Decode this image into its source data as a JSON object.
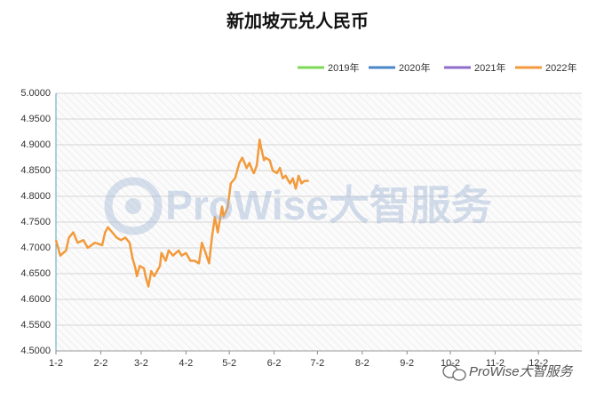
{
  "chart_data": {
    "type": "line",
    "title": "新加坡元兑人民币",
    "watermark": "ProWise大智服务",
    "footer": "ProWise大智服务",
    "x": [
      0,
      3,
      7,
      9,
      12,
      15,
      19,
      22,
      27,
      32,
      34,
      36,
      39,
      42,
      45,
      48,
      51,
      53,
      55,
      56,
      58,
      61,
      62,
      64,
      66,
      68,
      72,
      73,
      76,
      78,
      81,
      85,
      87,
      90,
      93,
      96,
      99,
      101,
      103,
      106,
      108,
      110,
      112,
      115,
      116,
      119,
      121,
      124,
      127,
      129,
      132,
      134,
      136,
      137,
      139,
      141,
      142,
      144,
      145,
      148,
      150,
      153,
      155,
      157,
      159,
      162,
      164,
      166,
      168,
      170,
      172,
      175
    ],
    "series": [
      {
        "name": "2019年",
        "color": "#7ed957",
        "values": [
          null,
          null,
          null,
          null,
          null,
          null,
          null,
          null,
          null,
          null,
          null,
          null,
          null,
          null,
          null,
          null,
          null,
          null,
          null,
          null,
          null,
          null,
          null,
          null,
          null,
          null,
          null,
          null,
          null,
          null,
          null,
          null,
          null,
          null,
          null,
          null,
          null,
          null,
          null,
          null,
          null,
          null,
          null,
          null,
          null,
          null,
          null,
          null,
          null,
          null,
          null,
          null,
          null,
          null,
          null,
          null,
          null,
          null,
          null,
          null,
          null,
          null,
          null,
          null,
          null,
          null,
          null,
          null,
          null,
          null,
          null,
          null
        ]
      },
      {
        "name": "2020年",
        "color": "#4a86c8",
        "values": [
          null,
          null,
          null,
          null,
          null,
          null,
          null,
          null,
          null,
          null,
          null,
          null,
          null,
          null,
          null,
          null,
          null,
          null,
          null,
          null,
          null,
          null,
          null,
          null,
          null,
          null,
          null,
          null,
          null,
          null,
          null,
          null,
          null,
          null,
          null,
          null,
          null,
          null,
          null,
          null,
          null,
          null,
          null,
          null,
          null,
          null,
          null,
          null,
          null,
          null,
          null,
          null,
          null,
          null,
          null,
          null,
          null,
          null,
          null,
          null,
          null,
          null,
          null,
          null,
          null,
          null,
          null,
          null,
          null,
          null,
          null,
          null
        ]
      },
      {
        "name": "2021年",
        "color": "#8e6cc8",
        "values": [
          null,
          null,
          null,
          null,
          null,
          null,
          null,
          null,
          null,
          null,
          null,
          null,
          null,
          null,
          null,
          null,
          null,
          null,
          null,
          null,
          null,
          null,
          null,
          null,
          null,
          null,
          null,
          null,
          null,
          null,
          null,
          null,
          null,
          null,
          null,
          null,
          null,
          null,
          null,
          null,
          null,
          null,
          null,
          null,
          null,
          null,
          null,
          null,
          null,
          null,
          null,
          null,
          null,
          null,
          null,
          null,
          null,
          null,
          null,
          null,
          null,
          null,
          null,
          null,
          null,
          null,
          null,
          null,
          null,
          null,
          null,
          null
        ]
      },
      {
        "name": "2022年",
        "color": "#f29a3c",
        "values": [
          4.715,
          4.685,
          4.695,
          4.72,
          4.73,
          4.71,
          4.715,
          4.7,
          4.71,
          4.705,
          4.73,
          4.74,
          4.73,
          4.72,
          4.715,
          4.72,
          4.71,
          4.68,
          4.66,
          4.645,
          4.665,
          4.66,
          4.645,
          4.625,
          4.655,
          4.645,
          4.665,
          4.69,
          4.675,
          4.695,
          4.685,
          4.695,
          4.685,
          4.69,
          4.675,
          4.675,
          4.67,
          4.71,
          4.695,
          4.67,
          4.72,
          4.76,
          4.73,
          4.78,
          4.76,
          4.78,
          4.825,
          4.835,
          4.865,
          4.875,
          4.855,
          4.865,
          4.85,
          4.845,
          4.86,
          4.91,
          4.895,
          4.87,
          4.875,
          4.87,
          4.85,
          4.845,
          4.855,
          4.835,
          4.84,
          4.825,
          4.835,
          4.815,
          4.84,
          4.825,
          4.83,
          4.83
        ]
      }
    ],
    "xlim": [
      0,
      364
    ],
    "xticks": [
      {
        "value": 0,
        "label": "1-2"
      },
      {
        "value": 31,
        "label": "2-2"
      },
      {
        "value": 59,
        "label": "3-2"
      },
      {
        "value": 90,
        "label": "4-2"
      },
      {
        "value": 120,
        "label": "5-2"
      },
      {
        "value": 151,
        "label": "6-2"
      },
      {
        "value": 181,
        "label": "7-2"
      },
      {
        "value": 212,
        "label": "8-2"
      },
      {
        "value": 243,
        "label": "9-2"
      },
      {
        "value": 273,
        "label": "10-2"
      },
      {
        "value": 304,
        "label": "11-2"
      },
      {
        "value": 334,
        "label": "12-2"
      }
    ],
    "ylim": [
      4.5,
      5.0
    ],
    "yticks": [
      {
        "value": 4.5,
        "label": "4.5000"
      },
      {
        "value": 4.55,
        "label": "4.5500"
      },
      {
        "value": 4.6,
        "label": "4.6000"
      },
      {
        "value": 4.65,
        "label": "4.6500"
      },
      {
        "value": 4.7,
        "label": "4.7000"
      },
      {
        "value": 4.75,
        "label": "4.7500"
      },
      {
        "value": 4.8,
        "label": "4.8000"
      },
      {
        "value": 4.85,
        "label": "4.8500"
      },
      {
        "value": 4.9,
        "label": "4.9000"
      },
      {
        "value": 4.95,
        "label": "4.9500"
      },
      {
        "value": 5.0,
        "label": "5.0000"
      }
    ],
    "grid": true,
    "legend": "top-right"
  }
}
